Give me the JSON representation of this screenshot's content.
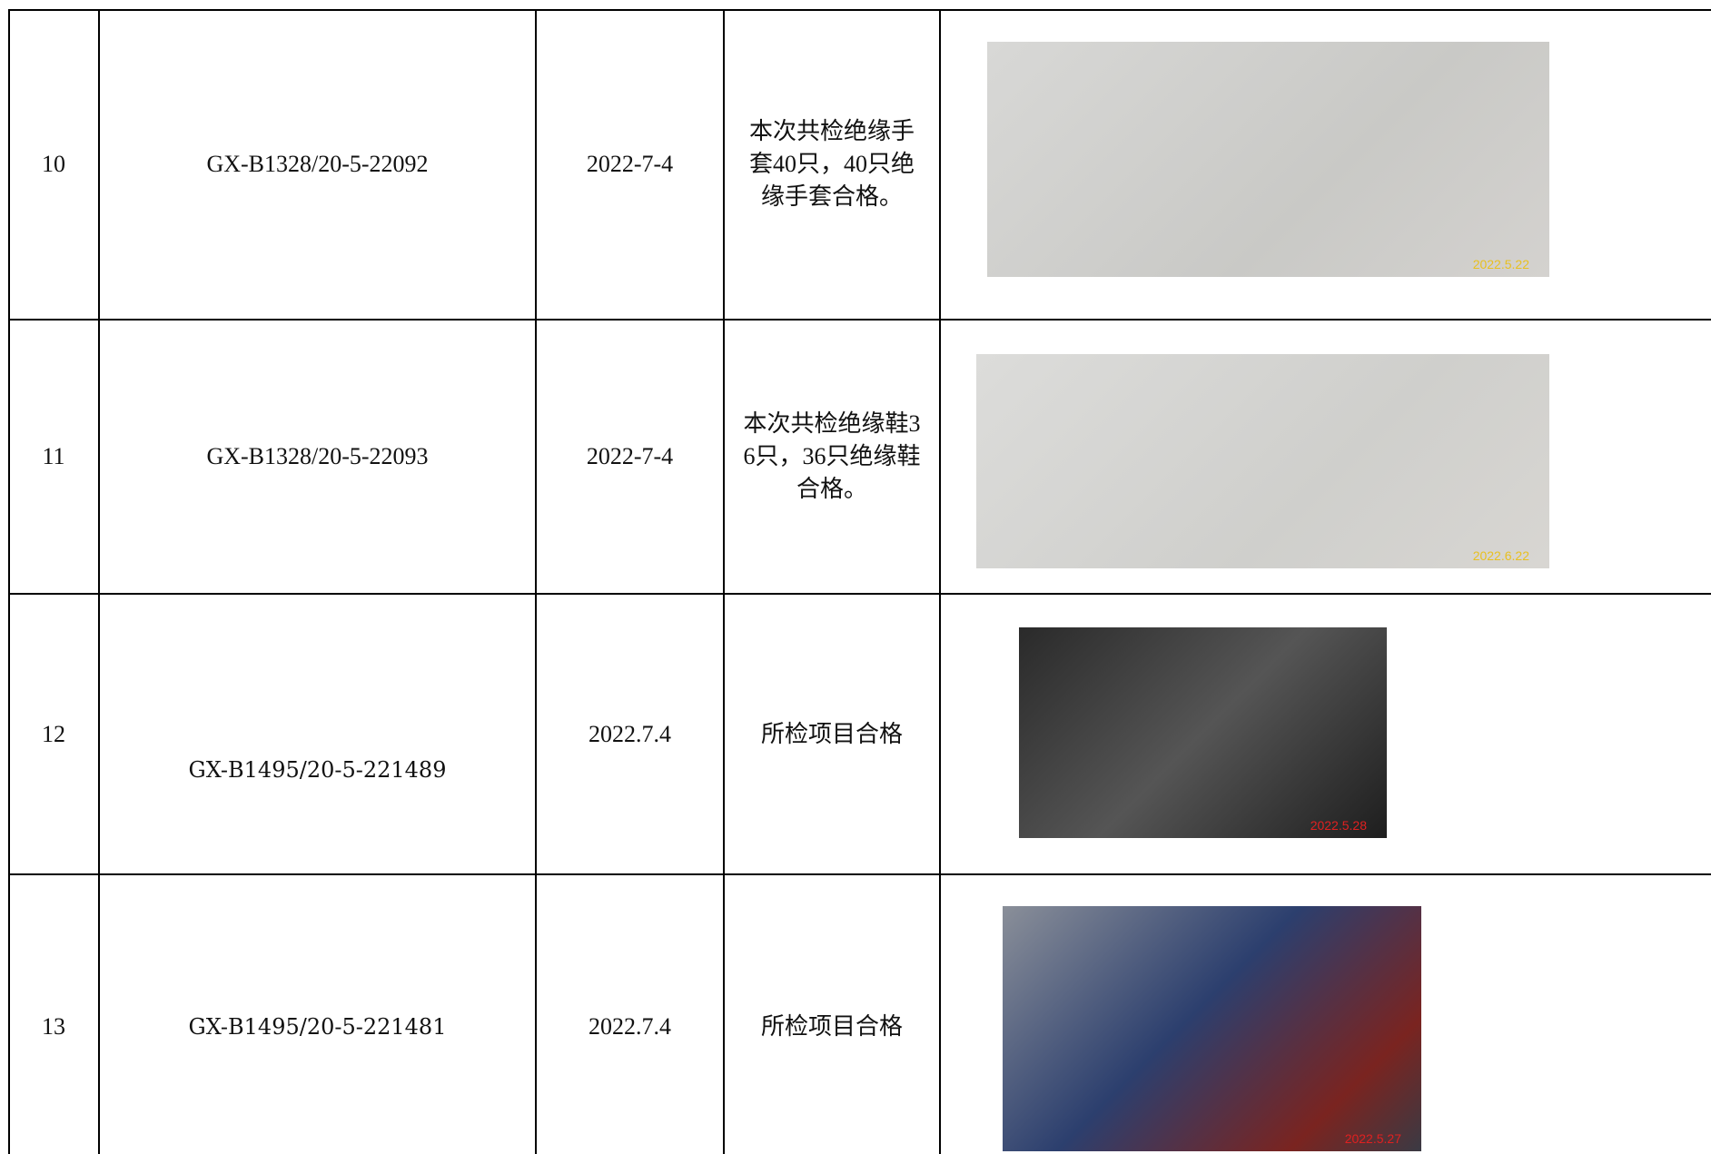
{
  "table": {
    "rows": [
      [
        "10",
        "GX-B1328/20-5-22092",
        "2022-7-4",
        "本次共检绝缘手套40只，40只绝缘手套合格。",
        "2022.5.22"
      ],
      [
        "11",
        "GX-B1328/20-5-22093",
        "2022-7-4",
        "本次共检绝缘鞋36只，36只绝缘鞋合格。",
        "2022.6.22"
      ],
      [
        "12",
        "GX-B1495/20-5-221489",
        "2022.7.4",
        "所检项目合格",
        "2022.5.28"
      ],
      [
        "13",
        "GX-B1495/20-5-221481",
        "2022.7.4",
        "所检项目合格",
        "2022.5.27"
      ]
    ]
  }
}
